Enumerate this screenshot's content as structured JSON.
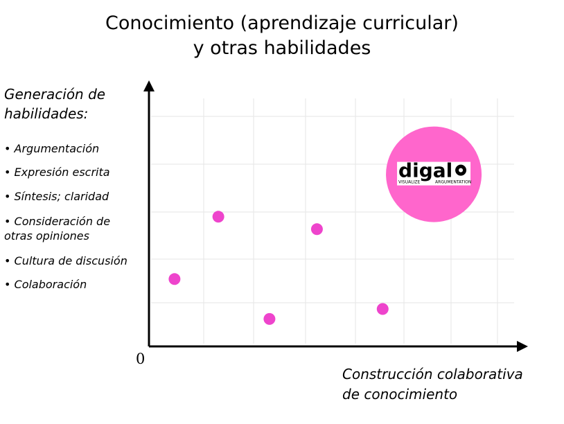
{
  "title": {
    "line1_bold": "Conocimiento",
    "line1_rest": " (aprendizaje curricular)",
    "line2": "y otras habilidades"
  },
  "y_axis": {
    "label_line1": "Generación de",
    "label_line2": "habilidades:",
    "skills": [
      "• Argumentación",
      "• Expresión escrita",
      "• Síntesis; claridad",
      "• Consideración de\n  otras opiniones",
      "• Cultura de discusión",
      "• Colaboración"
    ]
  },
  "x_axis": {
    "origin_label": "0",
    "label_line1": "Construcción colaborativa",
    "label_line2": "de conocimiento"
  },
  "logo": {
    "text": "digalo",
    "tagline_left": "VISUALIZE",
    "tagline_right": "ARGUMENTATION",
    "color": "#ff66cc"
  },
  "chart_data": {
    "type": "scatter",
    "xlim": [
      0,
      100
    ],
    "ylim": [
      0,
      100
    ],
    "grid": true,
    "point_color": "#ee44cc",
    "points": [
      {
        "x": 7,
        "y": 27
      },
      {
        "x": 19,
        "y": 52
      },
      {
        "x": 33,
        "y": 11
      },
      {
        "x": 46,
        "y": 47
      },
      {
        "x": 64,
        "y": 15
      }
    ],
    "highlight": {
      "x": 78,
      "y": 69
    }
  }
}
